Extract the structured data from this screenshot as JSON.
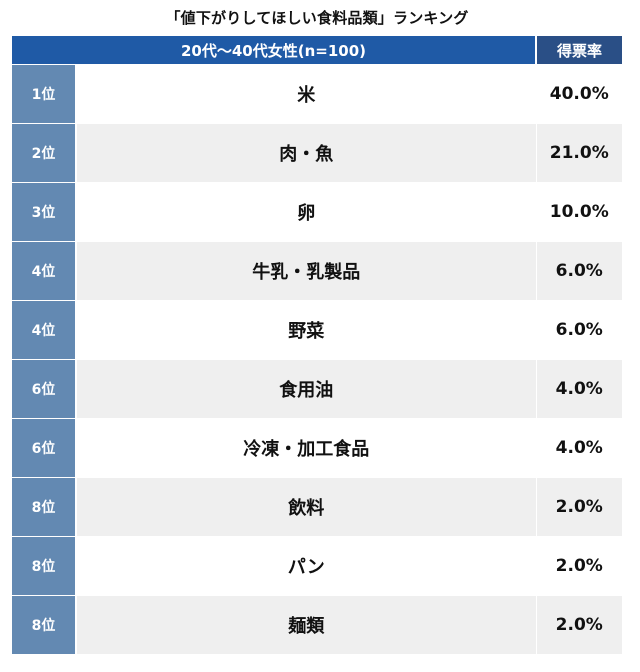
{
  "chart_data": {
    "type": "table",
    "title": "「値下がりしてほしい食料品類」ランキング",
    "columns": {
      "group": "20代〜40代女性(n=100)",
      "rate": "得票率"
    },
    "rows": [
      {
        "rank": "1位",
        "item": "米",
        "rate": "40.0%"
      },
      {
        "rank": "2位",
        "item": "肉・魚",
        "rate": "21.0%"
      },
      {
        "rank": "3位",
        "item": "卵",
        "rate": "10.0%"
      },
      {
        "rank": "4位",
        "item": "牛乳・乳製品",
        "rate": "6.0%"
      },
      {
        "rank": "4位",
        "item": "野菜",
        "rate": "6.0%"
      },
      {
        "rank": "6位",
        "item": "食用油",
        "rate": "4.0%"
      },
      {
        "rank": "6位",
        "item": "冷凍・加工食品",
        "rate": "4.0%"
      },
      {
        "rank": "8位",
        "item": "飲料",
        "rate": "2.0%"
      },
      {
        "rank": "8位",
        "item": "パン",
        "rate": "2.0%"
      },
      {
        "rank": "8位",
        "item": "麺類",
        "rate": "2.0%"
      }
    ],
    "colors": {
      "header_group": "#1f5aa6",
      "header_rate": "#2a4f86",
      "rank_column": "#6389b2",
      "row_alt": "#efefef"
    }
  }
}
